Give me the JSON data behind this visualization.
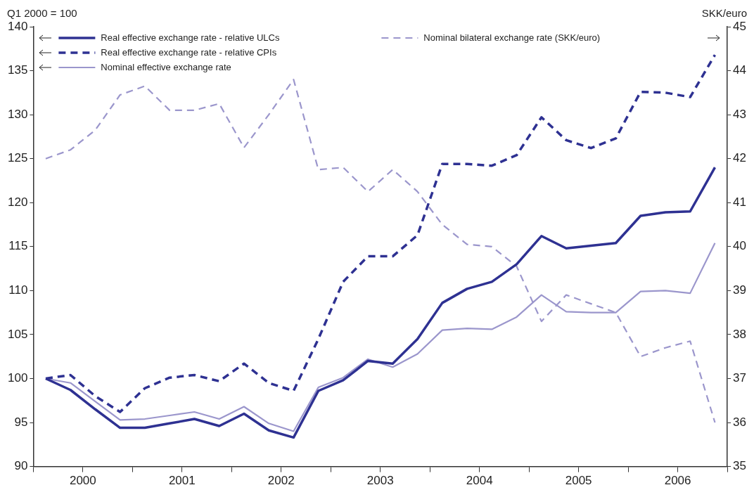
{
  "chart_data": {
    "type": "line",
    "ylabel": "Q1 2000 = 100",
    "y2label": "SKK/euro",
    "x": [
      2000.125,
      2000.375,
      2000.625,
      2000.875,
      2001.125,
      2001.375,
      2001.625,
      2001.875,
      2002.125,
      2002.375,
      2002.625,
      2002.875,
      2003.125,
      2003.375,
      2003.625,
      2003.875,
      2004.125,
      2004.375,
      2004.625,
      2004.875,
      2005.125,
      2005.375,
      2005.625,
      2005.875,
      2006.125,
      2006.375,
      2006.625,
      2006.875
    ],
    "xlim": [
      2000,
      2007
    ],
    "xticks": [
      {
        "value": 2000,
        "label": null
      },
      {
        "value": 2000.5,
        "label": "2000"
      },
      {
        "value": 2001,
        "label": null
      },
      {
        "value": 2001.5,
        "label": "2001"
      },
      {
        "value": 2002,
        "label": null
      },
      {
        "value": 2002.5,
        "label": "2002"
      },
      {
        "value": 2003,
        "label": null
      },
      {
        "value": 2003.5,
        "label": "2003"
      },
      {
        "value": 2004,
        "label": null
      },
      {
        "value": 2004.5,
        "label": "2004"
      },
      {
        "value": 2005,
        "label": null
      },
      {
        "value": 2005.5,
        "label": "2005"
      },
      {
        "value": 2006,
        "label": null
      },
      {
        "value": 2006.5,
        "label": "2006"
      },
      {
        "value": 2007,
        "label": null
      }
    ],
    "ylim": [
      90,
      140
    ],
    "yticks": [
      90,
      95,
      100,
      105,
      110,
      115,
      120,
      125,
      130,
      135,
      140
    ],
    "y2lim": [
      35,
      45
    ],
    "y2ticks": [
      35,
      36,
      37,
      38,
      39,
      40,
      41,
      42,
      43,
      44,
      45
    ],
    "grid": false,
    "legend": "top",
    "marker": "none",
    "series": [
      {
        "name": "Real effective exchange rate - relative ULCs",
        "color": "#2e3192",
        "line_style": "solid",
        "values": [
          100,
          98.7,
          96.5,
          94.4,
          94.4,
          94.9,
          95.4,
          94.6,
          96.0,
          94.1,
          93.3,
          98.6,
          99.8,
          102.0,
          101.7,
          104.5,
          108.6,
          110.2,
          111.0,
          113.0,
          116.2,
          114.8,
          115.1,
          115.4,
          118.5,
          118.9,
          119.0,
          124.0
        ]
      },
      {
        "name": "Real effective exchange rate - relative CPIs",
        "color": "#2e3192",
        "line_style": "dashed",
        "values": [
          100,
          100.4,
          98.0,
          96.2,
          98.9,
          100.1,
          100.4,
          99.7,
          101.7,
          99.5,
          98.6,
          104.5,
          111.0,
          113.9,
          113.9,
          116.3,
          124.4,
          124.4,
          124.2,
          125.4,
          129.7,
          127.1,
          126.2,
          127.3,
          132.6,
          132.5,
          132.0,
          136.8
        ]
      },
      {
        "name": "Nominal effective exchange rate",
        "color": "#9b96cc",
        "line_style": "solid",
        "values": [
          100,
          99.5,
          97.4,
          95.3,
          95.4,
          95.8,
          96.2,
          95.4,
          96.8,
          94.9,
          94.0,
          99.0,
          100.1,
          102.2,
          101.3,
          102.8,
          105.5,
          105.7,
          105.6,
          107.0,
          109.5,
          107.6,
          107.5,
          107.5,
          109.9,
          110.0,
          109.7,
          115.4
        ]
      },
      {
        "name": "Nominal bilateral exchange rate (SKK/euro)",
        "color": "#9b96cc",
        "line_style": "dashed",
        "axis": "y2",
        "values": [
          42.0,
          42.2,
          42.65,
          43.45,
          43.65,
          43.1,
          43.1,
          43.25,
          42.25,
          43.0,
          43.8,
          41.75,
          41.8,
          41.25,
          41.75,
          41.25,
          40.5,
          40.05,
          40.0,
          39.55,
          38.3,
          38.9,
          38.7,
          38.5,
          37.5,
          37.7,
          37.85,
          36.0
        ]
      }
    ]
  }
}
